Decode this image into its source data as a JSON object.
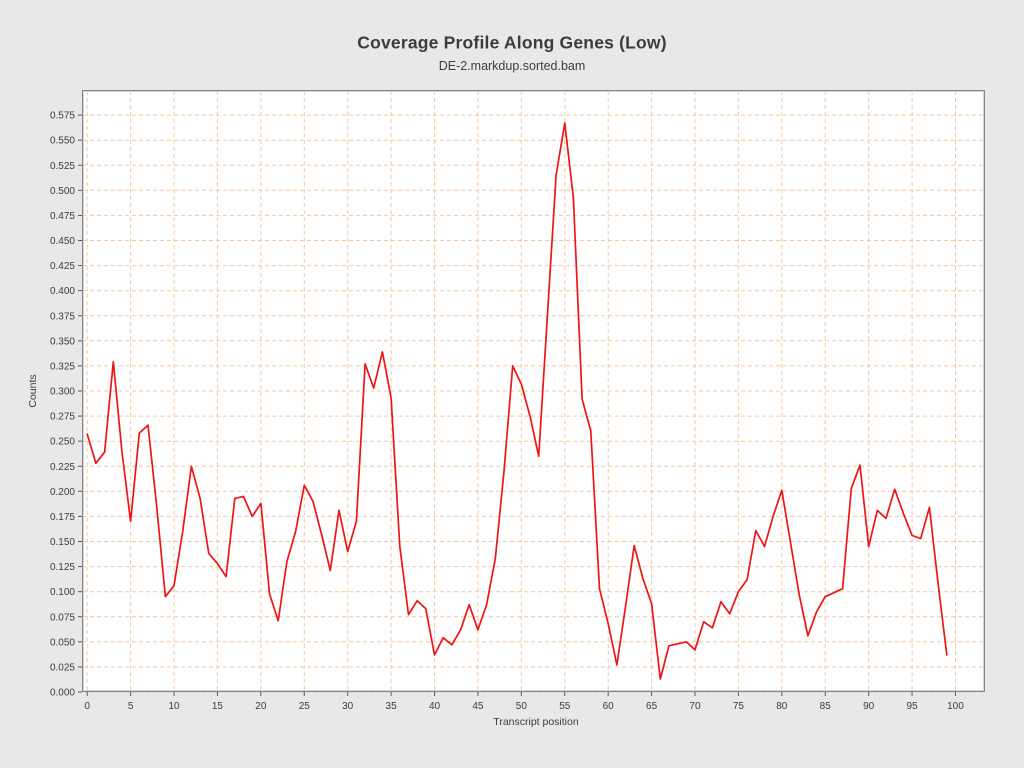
{
  "window": {
    "background": "#e8e8e8"
  },
  "chart_data": {
    "type": "line",
    "title": "Coverage Profile Along Genes (Low)",
    "subtitle": "DE-2.markdup.sorted.bam",
    "xlabel": "Transcript position",
    "ylabel": "Counts",
    "x_start": 0,
    "x_step": 1,
    "xlim": [
      -0.6,
      103.4
    ],
    "ylim": [
      0,
      0.6
    ],
    "x_ticks": [
      "0",
      "5",
      "10",
      "15",
      "20",
      "25",
      "30",
      "35",
      "40",
      "45",
      "50",
      "55",
      "60",
      "65",
      "70",
      "75",
      "80",
      "85",
      "90",
      "95",
      "100"
    ],
    "y_ticks": [
      "0.000",
      "0.025",
      "0.050",
      "0.075",
      "0.100",
      "0.125",
      "0.150",
      "0.175",
      "0.200",
      "0.225",
      "0.250",
      "0.275",
      "0.300",
      "0.325",
      "0.350",
      "0.375",
      "0.400",
      "0.425",
      "0.450",
      "0.475",
      "0.500",
      "0.525",
      "0.550",
      "0.575"
    ],
    "grid": {
      "show": true,
      "color": "#f4c9a2",
      "dash": "4,3"
    },
    "plot_bg": "#ffffff",
    "frame_color": "#858585",
    "frame_inner_color": "#d6d6d6",
    "tick_color": "#5a5a5a",
    "text_color": "#3c3c3c",
    "legend": "none",
    "series": [
      {
        "name": "DE-2.markdup.sorted.bam",
        "color": "#ee1515",
        "values": [
          0.257,
          0.228,
          0.239,
          0.329,
          0.24,
          0.17,
          0.258,
          0.266,
          0.185,
          0.095,
          0.106,
          0.16,
          0.225,
          0.193,
          0.138,
          0.128,
          0.115,
          0.193,
          0.195,
          0.175,
          0.188,
          0.098,
          0.071,
          0.13,
          0.16,
          0.206,
          0.19,
          0.157,
          0.121,
          0.181,
          0.14,
          0.17,
          0.327,
          0.303,
          0.339,
          0.293,
          0.145,
          0.077,
          0.091,
          0.083,
          0.037,
          0.054,
          0.047,
          0.062,
          0.087,
          0.062,
          0.087,
          0.133,
          0.22,
          0.325,
          0.307,
          0.275,
          0.235,
          0.375,
          0.515,
          0.567,
          0.492,
          0.292,
          0.26,
          0.103,
          0.068,
          0.027,
          0.085,
          0.146,
          0.113,
          0.088,
          0.013,
          0.046,
          0.048,
          0.05,
          0.042,
          0.07,
          0.064,
          0.09,
          0.078,
          0.1,
          0.112,
          0.161,
          0.145,
          0.175,
          0.201,
          0.149,
          0.097,
          0.056,
          0.08,
          0.095,
          0.099,
          0.103,
          0.203,
          0.226,
          0.145,
          0.181,
          0.173,
          0.202,
          0.178,
          0.156,
          0.153,
          0.184,
          0.108,
          0.037
        ]
      }
    ]
  }
}
